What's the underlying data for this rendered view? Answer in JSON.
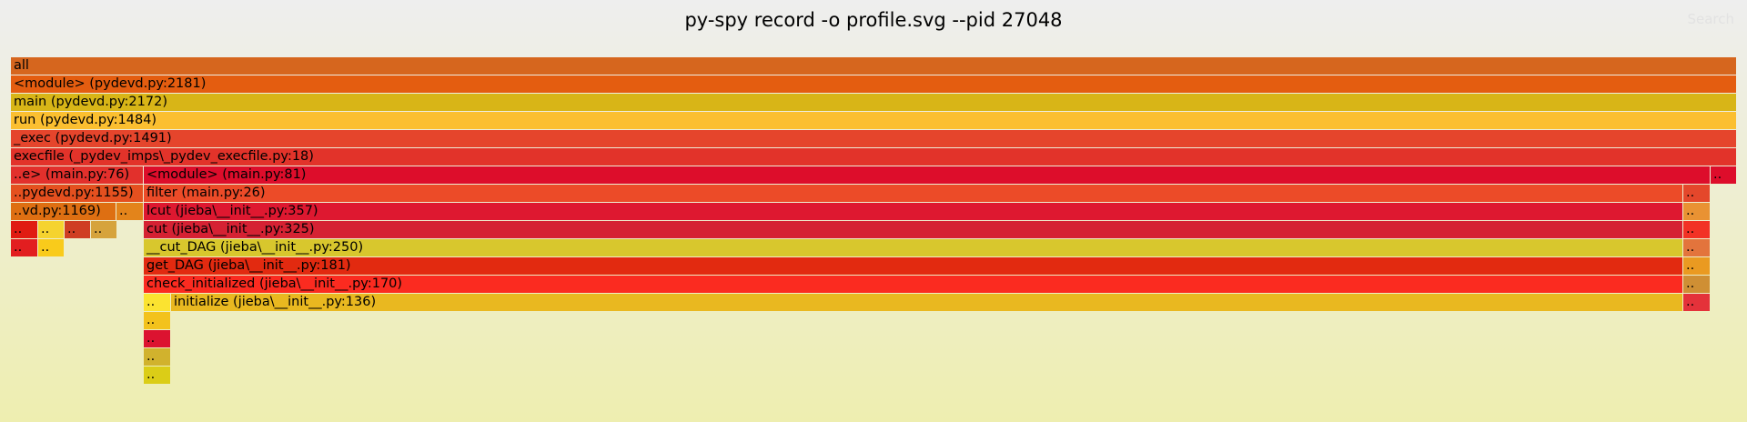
{
  "header": {
    "title": "py-spy record -o profile.svg --pid 27048",
    "search_label": "Search"
  },
  "frames": [
    {
      "label": "all",
      "color": "#d6661e",
      "col0": 12,
      "col1": 1908,
      "row": 0
    },
    {
      "label": "<module> (pydevd.py:2181)",
      "color": "#e45d10",
      "col0": 12,
      "col1": 1908,
      "row": 1
    },
    {
      "label": "main (pydevd.py:2172)",
      "color": "#d8b517",
      "col0": 12,
      "col1": 1908,
      "row": 2
    },
    {
      "label": "run (pydevd.py:1484)",
      "color": "#fbbf30",
      "col0": 12,
      "col1": 1908,
      "row": 3
    },
    {
      "label": "_exec (pydevd.py:1491)",
      "color": "#e5452c",
      "col0": 12,
      "col1": 1908,
      "row": 4
    },
    {
      "label": "execfile (_pydev_imps\\_pydev_execfile.py:18)",
      "color": "#e2332a",
      "col0": 12,
      "col1": 1908,
      "row": 5
    },
    {
      "label": "..e> (main.py:76)",
      "color": "#e2302c",
      "col0": 12,
      "col1": 157,
      "row": 6
    },
    {
      "label": "<module> (main.py:81)",
      "color": "#dd0d2b",
      "col0": 158,
      "col1": 1879,
      "row": 6
    },
    {
      "label": "..",
      "color": "#dd0d2b",
      "col0": 1880,
      "col1": 1908,
      "row": 6
    },
    {
      "label": "..pydevd.py:1155)",
      "color": "#e4501f",
      "col0": 12,
      "col1": 157,
      "row": 7
    },
    {
      "label": "filter (main.py:26)",
      "color": "#ec4b28",
      "col0": 158,
      "col1": 1849,
      "row": 7
    },
    {
      "label": "..",
      "color": "#e4472b",
      "col0": 1850,
      "col1": 1879,
      "row": 7
    },
    {
      "label": "..vd.py:1169)",
      "color": "#de6f12",
      "col0": 12,
      "col1": 127,
      "row": 8
    },
    {
      "label": "..",
      "color": "#e3841b",
      "col0": 128,
      "col1": 157,
      "row": 8
    },
    {
      "label": "lcut (jieba\\__init__.py:357)",
      "color": "#de1830",
      "col0": 158,
      "col1": 1849,
      "row": 8
    },
    {
      "label": "..",
      "color": "#e99233",
      "col0": 1850,
      "col1": 1879,
      "row": 8
    },
    {
      "label": "..",
      "color": "#e01b12",
      "col0": 12,
      "col1": 41,
      "row": 9
    },
    {
      "label": "..",
      "color": "#f5d32f",
      "col0": 42,
      "col1": 70,
      "row": 9
    },
    {
      "label": "..",
      "color": "#cf3e22",
      "col0": 71,
      "col1": 99,
      "row": 9
    },
    {
      "label": "..",
      "color": "#d6a33c",
      "col0": 100,
      "col1": 128,
      "row": 9
    },
    {
      "label": "cut (jieba\\__init__.py:325)",
      "color": "#d52233",
      "col0": 158,
      "col1": 1849,
      "row": 9
    },
    {
      "label": "..",
      "color": "#f23225",
      "col0": 1850,
      "col1": 1879,
      "row": 9
    },
    {
      "label": "..",
      "color": "#e21e20",
      "col0": 12,
      "col1": 41,
      "row": 10
    },
    {
      "label": "..",
      "color": "#f9cb1b",
      "col0": 42,
      "col1": 70,
      "row": 10
    },
    {
      "label": "__cut_DAG (jieba\\__init__.py:250)",
      "color": "#d8c72d",
      "col0": 158,
      "col1": 1849,
      "row": 10
    },
    {
      "label": "..",
      "color": "#e3743c",
      "col0": 1850,
      "col1": 1879,
      "row": 10
    },
    {
      "label": "get_DAG (jieba\\__init__.py:181)",
      "color": "#e22a10",
      "col0": 158,
      "col1": 1849,
      "row": 11
    },
    {
      "label": "..",
      "color": "#ea9a21",
      "col0": 1850,
      "col1": 1879,
      "row": 11
    },
    {
      "label": "check_initialized (jieba\\__init__.py:170)",
      "color": "#fb2b20",
      "col0": 158,
      "col1": 1849,
      "row": 12
    },
    {
      "label": "..",
      "color": "#cf8f34",
      "col0": 1850,
      "col1": 1879,
      "row": 12
    },
    {
      "label": "..",
      "color": "#fbe330",
      "col0": 158,
      "col1": 187,
      "row": 13
    },
    {
      "label": "initialize (jieba\\__init__.py:136)",
      "color": "#e9b820",
      "col0": 188,
      "col1": 1849,
      "row": 13
    },
    {
      "label": "..",
      "color": "#e4323a",
      "col0": 1850,
      "col1": 1879,
      "row": 13
    },
    {
      "label": "..",
      "color": "#f3c21c",
      "col0": 158,
      "col1": 187,
      "row": 14
    },
    {
      "label": "..",
      "color": "#dc1330",
      "col0": 158,
      "col1": 187,
      "row": 15
    },
    {
      "label": "..",
      "color": "#d1b22d",
      "col0": 158,
      "col1": 187,
      "row": 16
    },
    {
      "label": "..",
      "color": "#dbcd17",
      "col0": 158,
      "col1": 187,
      "row": 17
    }
  ]
}
